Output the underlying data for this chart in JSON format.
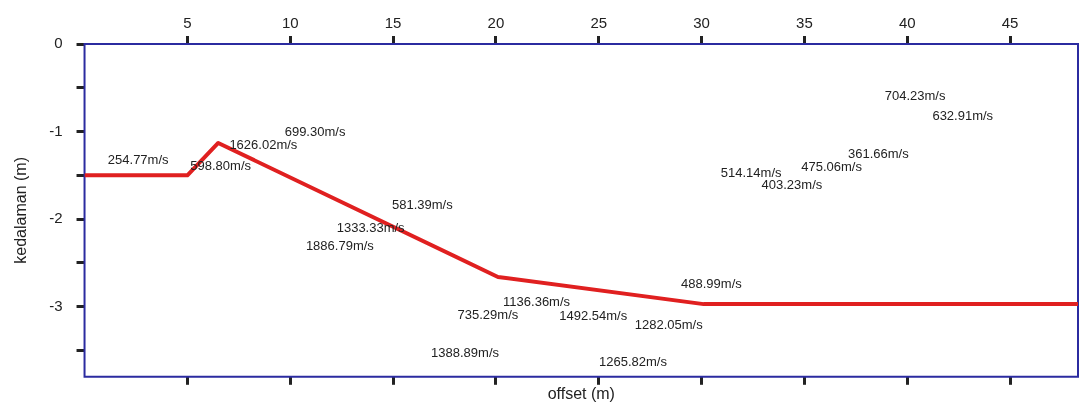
{
  "chart_data": {
    "type": "line",
    "xlabel": "offset (m)",
    "ylabel": "kedalaman (m)",
    "xlim": [
      0,
      48.3
    ],
    "xticks": [
      5,
      10,
      15,
      20,
      25,
      30,
      35,
      40,
      45
    ],
    "ylim": [
      -3.8,
      0
    ],
    "yticks": [
      0,
      {
        "value": -0.5,
        "label": null
      },
      -1,
      {
        "value": -1.5,
        "label": null
      },
      -2,
      {
        "value": -2.5,
        "label": null
      },
      -3,
      {
        "value": -3.5,
        "label": null
      }
    ],
    "grid": false,
    "legend": false,
    "marker": "none",
    "line_style": "solid",
    "series": [
      {
        "color": "#e02020",
        "x": [
          0,
          5,
          6.5,
          20.1,
          30.1,
          48.3
        ],
        "values": [
          -1.5,
          -1.5,
          -1.13,
          -2.66,
          -2.97,
          -2.97
        ]
      }
    ],
    "annotations": [
      "699.30m/s",
      "1626.02m/s",
      "254.77m/s",
      "598.80m/s",
      "581.39m/s",
      "1333.33m/s",
      "1886.79m/s",
      "704.23m/s",
      "632.91m/s",
      "361.66m/s",
      "475.06m/s",
      "514.14m/s",
      "403.23m/s",
      "488.99m/s",
      "1136.36m/s",
      "735.29m/s",
      "1492.54m/s",
      "1282.05m/s",
      "1388.89m/s",
      "1265.82m/s"
    ]
  }
}
